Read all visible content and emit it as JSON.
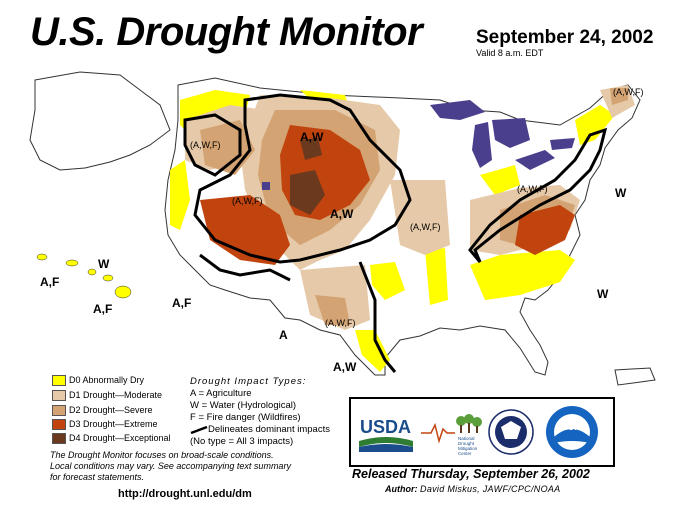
{
  "header": {
    "title": "U.S. Drought Monitor",
    "date": "September 24, 2002",
    "valid": "Valid 8 a.m. EDT"
  },
  "map_labels": {
    "west_cascades": "(A,W,F)",
    "north_plains": "A,W",
    "great_basin": "(A,W,F)",
    "central_plains": "A,W",
    "mid_mississippi": "(A,W,F)",
    "ohio_valley": "(A,W,F)",
    "new_england": "(A,W,F)",
    "mid_atlantic": "W",
    "southeast": "W",
    "hawaii_north": "W",
    "hawaii_west": "A,F",
    "hawaii_south": "A,F",
    "southwest": "A,F",
    "south_texas_a": "A",
    "texas_ridge": "(A,W,F)",
    "texas_coast": "A,W"
  },
  "legend": {
    "categories": [
      {
        "label": "D0 Abnormally Dry",
        "color": "#ffff00"
      },
      {
        "label": "D1 Drought—Moderate",
        "color": "#e6c9a8"
      },
      {
        "label": "D2 Drought—Severe",
        "color": "#d4a373"
      },
      {
        "label": "D3 Drought—Extreme",
        "color": "#c1440e"
      },
      {
        "label": "D4 Drought—Exceptional",
        "color": "#6b3a1e"
      }
    ]
  },
  "impacts": {
    "title": "Drought Impact Types:",
    "a": "A = Agriculture",
    "w": "W = Water (Hydrological)",
    "f": "F = Fire danger (Wildfires)",
    "delineates": "Delineates dominant impacts",
    "none": "(No type = All 3 impacts)"
  },
  "notes": {
    "line1": "The Drought Monitor focuses on broad-scale conditions.",
    "line2": "Local conditions may vary. See accompanying text summary",
    "line3": "for forecast statements."
  },
  "url": "http://drought.unl.edu/dm",
  "logos": {
    "usda": "USDA",
    "ndmc_line1": "National",
    "ndmc_line2": "Drought",
    "ndmc_line3": "Mitigation",
    "ndmc_line4": "Center",
    "noaa": "NOAA"
  },
  "footer": {
    "released": "Released Thursday, September 26, 2002",
    "author_label": "Author:",
    "author": "David Miskus, JAWF/CPC/NOAA"
  },
  "colors": {
    "d0": "#ffff00",
    "d1": "#e6c9a8",
    "d2": "#d4a373",
    "d3": "#c1440e",
    "d4": "#6b3a1e",
    "water": "#4a3f8c",
    "land": "#ffffff"
  }
}
